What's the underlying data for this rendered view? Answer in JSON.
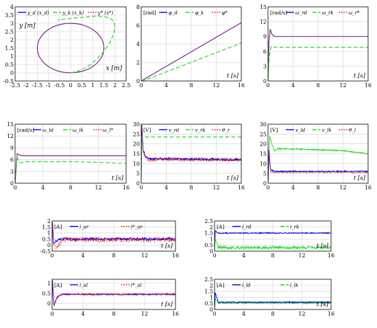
{
  "colors": {
    "blue": "#0000ee",
    "green": "#22dd22",
    "red": "#ee0000",
    "purple": "#7a2a8a",
    "grid": "#cfcfcf"
  },
  "chart_data": [
    {
      "id": "xy",
      "type": "line",
      "xlim": [
        -2.5,
        2.5
      ],
      "ylim": [
        -0.5,
        4
      ],
      "xticks": [
        -2.5,
        -2,
        -1.5,
        -1,
        -0.5,
        0,
        0.5,
        1,
        1.5,
        2,
        2.5
      ],
      "yticks": [
        -0.5,
        0,
        0.5,
        1,
        1.5,
        2,
        2.5,
        3,
        3.5,
        4
      ],
      "xlabel": "x [m]",
      "ylabel": "y [m]",
      "legend": [
        {
          "label": "y_d (x_d)",
          "color": "blue",
          "dash": "solid"
        },
        {
          "label": "y_k (x_k)",
          "color": "green",
          "dash": "dash"
        },
        {
          "label": "y* (x*)",
          "color": "red",
          "dash": "dot"
        }
      ],
      "series": [
        {
          "color": "purple",
          "dash": "solid",
          "kind": "circle",
          "cx": 0,
          "cy": 1.5,
          "r": 1.5
        },
        {
          "color": "green",
          "dash": "dash",
          "kind": "points",
          "x": [
            0,
            0.3,
            0.6,
            0.9,
            1.2,
            1.5,
            1.8,
            1.95,
            2.0,
            1.95,
            1.8,
            1.55,
            1.2,
            0.8,
            0.4,
            0.0,
            -0.3,
            -0.6
          ],
          "y": [
            0,
            0.08,
            0.25,
            0.5,
            0.85,
            1.3,
            1.9,
            2.4,
            2.8,
            3.1,
            3.3,
            3.4,
            3.45,
            3.4,
            3.35,
            3.3,
            3.25,
            3.2
          ]
        }
      ]
    },
    {
      "id": "phi",
      "type": "line",
      "xlim": [
        0,
        16
      ],
      "ylim": [
        0,
        8
      ],
      "xticks": [
        0,
        4,
        8,
        12,
        16
      ],
      "yticks": [
        0,
        2,
        4,
        6,
        8
      ],
      "xlabel": "t [s]",
      "ylabel": "[rad]",
      "legend": [
        {
          "label": "φ_d",
          "color": "blue",
          "dash": "solid"
        },
        {
          "label": "φ_k",
          "color": "green",
          "dash": "dash"
        },
        {
          "label": "φ*",
          "color": "red",
          "dash": "dot"
        }
      ],
      "series": [
        {
          "color": "purple",
          "dash": "solid",
          "kind": "points",
          "x": [
            0,
            16
          ],
          "y": [
            0,
            6.3
          ]
        },
        {
          "color": "green",
          "dash": "dash",
          "kind": "points",
          "x": [
            0,
            1,
            16
          ],
          "y": [
            0,
            0.2,
            4.1
          ]
        }
      ]
    },
    {
      "id": "omega_r",
      "type": "line",
      "xlim": [
        0,
        16
      ],
      "ylim": [
        0,
        15
      ],
      "xticks": [
        0,
        4,
        8,
        12,
        16
      ],
      "yticks": [
        0,
        3,
        6,
        9,
        12,
        15
      ],
      "xlabel": "t [s]",
      "ylabel": "[rad/s]",
      "legend": [
        {
          "label": "ω_rd",
          "color": "blue",
          "dash": "solid"
        },
        {
          "label": "ω_rk",
          "color": "green",
          "dash": "dash"
        },
        {
          "label": "ω_r*",
          "color": "red",
          "dash": "dot"
        }
      ],
      "series": [
        {
          "color": "purple",
          "dash": "solid",
          "kind": "points",
          "x": [
            0,
            0.15,
            0.35,
            0.6,
            1.0,
            16
          ],
          "y": [
            0,
            8,
            10.5,
            9.5,
            9,
            9
          ]
        },
        {
          "color": "green",
          "dash": "dash",
          "kind": "points",
          "x": [
            0,
            0.2,
            0.5,
            1.0,
            16
          ],
          "y": [
            0,
            5,
            7,
            6.8,
            6.8
          ]
        }
      ]
    },
    {
      "id": "omega_l",
      "type": "line",
      "xlim": [
        0,
        16
      ],
      "ylim": [
        0,
        15
      ],
      "xticks": [
        0,
        4,
        8,
        12,
        16
      ],
      "yticks": [
        0,
        3,
        6,
        9,
        12,
        15
      ],
      "xlabel": "t [s]",
      "ylabel": "[rad/s]",
      "legend": [
        {
          "label": "ω_ld",
          "color": "blue",
          "dash": "solid"
        },
        {
          "label": "ω_lk",
          "color": "green",
          "dash": "dash"
        },
        {
          "label": "ω_l*",
          "color": "red",
          "dash": "dot"
        }
      ],
      "series": [
        {
          "color": "purple",
          "dash": "solid",
          "kind": "points",
          "x": [
            0,
            0.3,
            0.6,
            1.0,
            16
          ],
          "y": [
            0,
            7.5,
            7.2,
            7,
            7
          ]
        },
        {
          "color": "green",
          "dash": "dash",
          "kind": "points",
          "x": [
            0,
            0.3,
            0.7,
            1.5,
            8,
            12,
            16
          ],
          "y": [
            0,
            6.5,
            5.2,
            5.5,
            5.5,
            5.3,
            5.0
          ]
        }
      ]
    },
    {
      "id": "v_r",
      "type": "line",
      "xlim": [
        0,
        16
      ],
      "ylim": [
        0,
        30
      ],
      "xticks": [
        0,
        4,
        8,
        12,
        16
      ],
      "yticks": [
        0,
        5,
        10,
        15,
        20,
        25,
        30
      ],
      "xlabel": "t [s]",
      "ylabel": "[V]",
      "legend": [
        {
          "label": "v_rd",
          "color": "blue",
          "dash": "solid"
        },
        {
          "label": "v_rk",
          "color": "green",
          "dash": "dash"
        },
        {
          "label": "ϑ_r",
          "color": "red",
          "dash": "dot"
        }
      ],
      "series": [
        {
          "color": "blue",
          "dash": "solid",
          "kind": "noisy",
          "x": [
            0,
            0.1,
            0.3,
            0.8,
            1.5,
            3,
            16
          ],
          "y": [
            0,
            29,
            17,
            13,
            12.3,
            12.5,
            12
          ],
          "amp": 0.6
        },
        {
          "color": "red",
          "dash": "dot",
          "kind": "noisy",
          "x": [
            0,
            0.1,
            0.3,
            0.8,
            1.5,
            3,
            16
          ],
          "y": [
            0,
            30,
            16,
            12.5,
            11.8,
            12.2,
            11.8
          ],
          "amp": 0.9
        },
        {
          "color": "green",
          "dash": "dash",
          "kind": "points",
          "x": [
            0,
            0.1,
            0.2,
            16
          ],
          "y": [
            0,
            23.5,
            23.5,
            23.5
          ]
        }
      ]
    },
    {
      "id": "v_l",
      "type": "line",
      "xlim": [
        0,
        16
      ],
      "ylim": [
        0,
        30
      ],
      "xticks": [
        0,
        4,
        8,
        12,
        16
      ],
      "yticks": [
        0,
        5,
        10,
        15,
        20,
        25,
        30
      ],
      "xlabel": "t [s]",
      "ylabel": "[V]",
      "legend": [
        {
          "label": "v_ld",
          "color": "blue",
          "dash": "solid"
        },
        {
          "label": "v_lk",
          "color": "green",
          "dash": "dash"
        },
        {
          "label": "ϑ_l",
          "color": "red",
          "dash": "dot"
        }
      ],
      "series": [
        {
          "color": "green",
          "dash": "solid",
          "kind": "noisy",
          "x": [
            0,
            0.3,
            0.6,
            1.0,
            1.5,
            3,
            8,
            12,
            16
          ],
          "y": [
            0,
            24,
            20,
            16.5,
            17.5,
            17.5,
            17,
            16.5,
            15
          ],
          "amp": 0.3
        },
        {
          "color": "blue",
          "dash": "solid",
          "kind": "noisy",
          "x": [
            0,
            0.15,
            0.4,
            1.0,
            16
          ],
          "y": [
            0,
            17,
            7,
            6,
            6
          ],
          "amp": 0.3
        },
        {
          "color": "red",
          "dash": "dot",
          "kind": "noisy",
          "x": [
            0,
            0.15,
            0.4,
            1.0,
            16
          ],
          "y": [
            0,
            16,
            6,
            5.5,
            5.5
          ],
          "amp": 0.3
        }
      ]
    },
    {
      "id": "i_ar",
      "type": "line",
      "xlim": [
        0,
        16
      ],
      "ylim": [
        -0.5,
        2
      ],
      "xticks": [
        0,
        4,
        8,
        12,
        16
      ],
      "yticks": [
        -0.5,
        0,
        0.5,
        1,
        1.5,
        2
      ],
      "xlabel": "t [s]",
      "ylabel": "[A]",
      "legend": [
        {
          "label": "i_ar",
          "color": "blue",
          "dash": "solid"
        },
        {
          "label": "i*_ar",
          "color": "red",
          "dash": "dot"
        }
      ],
      "series": [
        {
          "color": "blue",
          "dash": "solid",
          "kind": "noisy",
          "x": [
            0,
            0.05,
            0.2,
            0.5,
            1.2,
            16
          ],
          "y": [
            0,
            1.9,
            0.1,
            0.35,
            0.5,
            0.5
          ],
          "amp": 0.12
        },
        {
          "color": "red",
          "dash": "dot",
          "kind": "noisy",
          "x": [
            0,
            0.05,
            0.2,
            0.5,
            0.9,
            1.4,
            16
          ],
          "y": [
            0,
            1.8,
            0.1,
            -0.3,
            0.1,
            0.45,
            0.45
          ],
          "amp": 0.22
        }
      ]
    },
    {
      "id": "i_r",
      "type": "line",
      "xlim": [
        0,
        16
      ],
      "ylim": [
        0,
        2.5
      ],
      "xticks": [
        0,
        4,
        8,
        12,
        16
      ],
      "yticks": [
        0,
        0.5,
        1,
        1.5,
        2,
        2.5
      ],
      "xlabel": "t [s]",
      "ylabel": "[A]",
      "legend": [
        {
          "label": "i_rd",
          "color": "blue",
          "dash": "solid"
        },
        {
          "label": "i_rk",
          "color": "green",
          "dash": "dash"
        }
      ],
      "series": [
        {
          "color": "blue",
          "dash": "solid",
          "kind": "noisy",
          "x": [
            0,
            0.1,
            0.5,
            16
          ],
          "y": [
            0,
            1.7,
            1.5,
            1.5
          ],
          "amp": 0.05
        },
        {
          "color": "green",
          "dash": "solid",
          "kind": "noisy",
          "x": [
            0,
            0.1,
            0.5,
            16
          ],
          "y": [
            0,
            1.0,
            0.3,
            0.3
          ],
          "amp": 0.12
        }
      ]
    },
    {
      "id": "i_al",
      "type": "line",
      "xlim": [
        0,
        16
      ],
      "ylim": [
        -0.3,
        1.2
      ],
      "xticks": [
        0,
        4,
        8,
        12,
        16
      ],
      "yticks": [
        0,
        0.5,
        1
      ],
      "xlabel": "t [s]",
      "ylabel": "[A]",
      "legend": [
        {
          "label": "i_al",
          "color": "blue",
          "dash": "solid"
        },
        {
          "label": "i*_al",
          "color": "red",
          "dash": "dot"
        }
      ],
      "series": [
        {
          "color": "blue",
          "dash": "solid",
          "kind": "noisy",
          "x": [
            0,
            0.05,
            0.25,
            0.6,
            1.2,
            16
          ],
          "y": [
            0,
            1.15,
            -0.1,
            0.3,
            0.45,
            0.45
          ],
          "amp": 0.03
        },
        {
          "color": "red",
          "dash": "dot",
          "kind": "noisy",
          "x": [
            0,
            0.05,
            0.25,
            0.6,
            1.2,
            16
          ],
          "y": [
            0,
            1.1,
            -0.15,
            0.25,
            0.45,
            0.45
          ],
          "amp": 0.05
        }
      ]
    },
    {
      "id": "i_l",
      "type": "line",
      "xlim": [
        0,
        16
      ],
      "ylim": [
        0,
        2.5
      ],
      "xticks": [
        0,
        4,
        8,
        12,
        16
      ],
      "yticks": [
        0,
        0.5,
        1,
        1.5,
        2,
        2.5
      ],
      "xlabel": "t [s]",
      "ylabel": "[A]",
      "legend": [
        {
          "label": "i_ld",
          "color": "blue",
          "dash": "solid"
        },
        {
          "label": "i_lk",
          "color": "green",
          "dash": "dash"
        }
      ],
      "series": [
        {
          "color": "green",
          "dash": "solid",
          "kind": "noisy",
          "x": [
            0,
            0.1,
            0.5,
            16
          ],
          "y": [
            0,
            0.9,
            0.55,
            0.55
          ],
          "amp": 0.08
        },
        {
          "color": "blue",
          "dash": "solid",
          "kind": "noisy",
          "x": [
            0,
            0.1,
            0.5,
            16
          ],
          "y": [
            0,
            1.4,
            0.6,
            0.6
          ],
          "amp": 0.05
        }
      ]
    }
  ]
}
